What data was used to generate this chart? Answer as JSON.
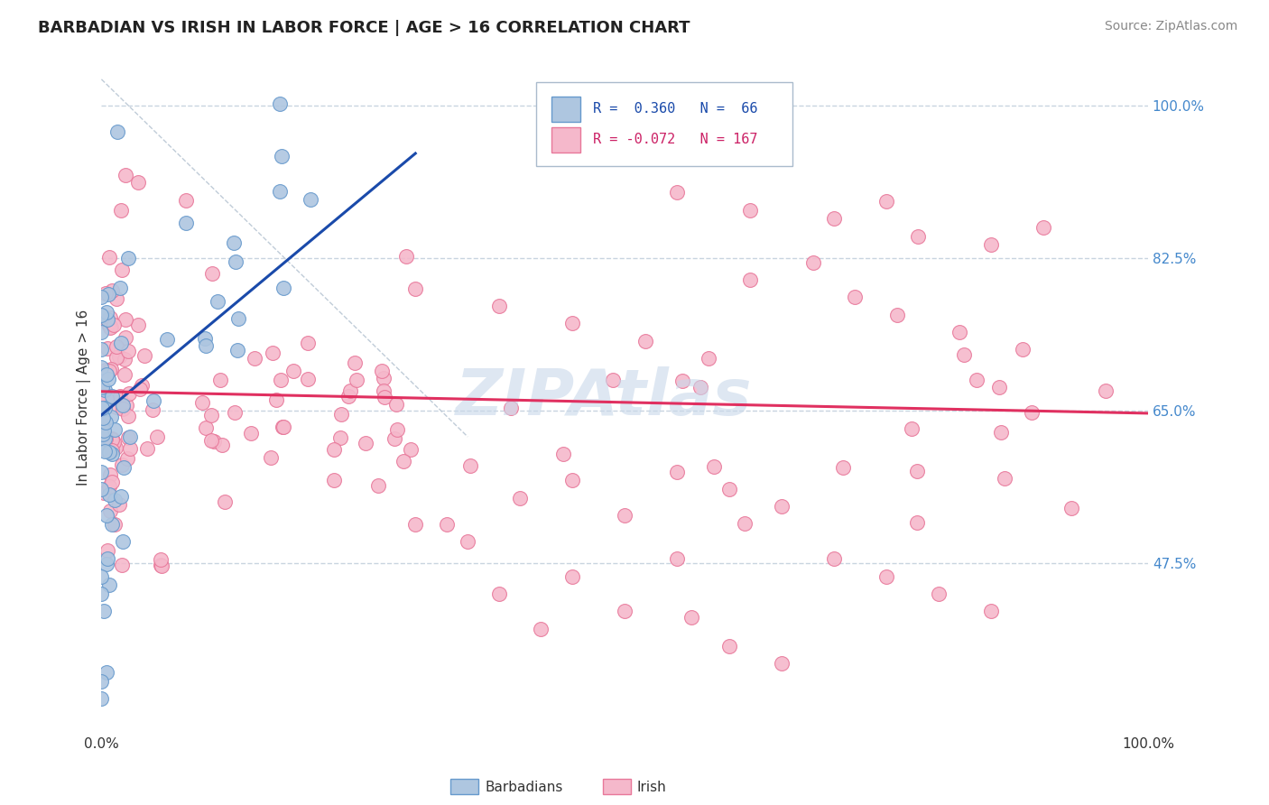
{
  "title": "BARBADIAN VS IRISH IN LABOR FORCE | AGE > 16 CORRELATION CHART",
  "source_text": "Source: ZipAtlas.com",
  "ylabel": "In Labor Force | Age > 16",
  "xlim": [
    0.0,
    1.0
  ],
  "ylim": [
    0.28,
    1.05
  ],
  "x_tick_labels": [
    "0.0%",
    "100.0%"
  ],
  "y_tick_labels": [
    "47.5%",
    "65.0%",
    "82.5%",
    "100.0%"
  ],
  "y_tick_vals": [
    0.475,
    0.65,
    0.825,
    1.0
  ],
  "legend_R_barb": "0.360",
  "legend_N_barb": "66",
  "legend_R_irish": "-0.072",
  "legend_N_irish": "167",
  "barbadian_color": "#aec6e0",
  "barbadian_edge": "#6699cc",
  "irish_color": "#f5b8cb",
  "irish_edge": "#e8789a",
  "trend_barbadian_color": "#1a4aaa",
  "trend_irish_color": "#e03060",
  "ref_line_color": "#c0ccd8",
  "watermark_color": "#c8d8ea",
  "background_color": "#ffffff",
  "grid_color": "#c8d4e0",
  "legend_text_blue": "#1a4aaa",
  "legend_text_pink": "#cc2266",
  "source_color": "#888888",
  "title_color": "#222222",
  "tick_color_blue": "#4488cc",
  "tick_color_dark": "#333333"
}
